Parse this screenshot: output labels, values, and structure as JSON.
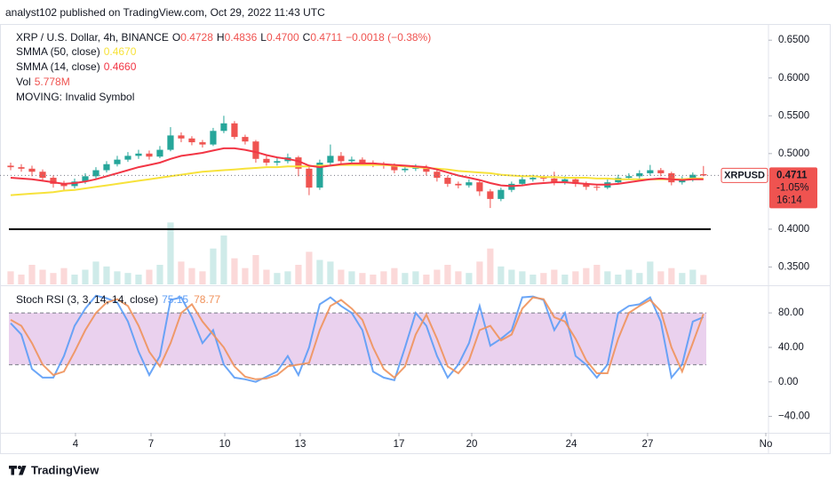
{
  "chart_data": {
    "type": "candlestick",
    "publisher": "analyst102 published on TradingView.com, Oct 29, 2022 11:43 UTC",
    "legend": {
      "symbol": "XRP / U.S. Dollar, 4h, BINANCE",
      "ohlc": [
        {
          "key": "O",
          "value": "0.4728"
        },
        {
          "key": "H",
          "value": "0.4836"
        },
        {
          "key": "L",
          "value": "0.4700"
        },
        {
          "key": "C",
          "value": "0.4711"
        }
      ],
      "change": "−0.0018 (−0.38%)",
      "vol": "Vol",
      "vol_value": "5.778M",
      "moving": "MOVING: Invalid Symbol"
    },
    "up_color": "#26a69a",
    "down_color": "#ef5350",
    "candles": {
      "open": [
        0.484,
        0.482,
        0.48,
        0.476,
        0.468,
        0.46,
        0.457,
        0.463,
        0.47,
        0.478,
        0.486,
        0.492,
        0.497,
        0.5,
        0.496,
        0.505,
        0.524,
        0.52,
        0.515,
        0.512,
        0.53,
        0.54,
        0.522,
        0.516,
        0.493,
        0.488,
        0.49,
        0.495,
        0.48,
        0.455,
        0.488,
        0.497,
        0.49,
        0.492,
        0.488,
        0.486,
        0.484,
        0.478,
        0.48,
        0.482,
        0.476,
        0.468,
        0.46,
        0.458,
        0.462,
        0.45,
        0.44,
        0.452,
        0.46,
        0.466,
        0.468,
        0.467,
        0.462,
        0.466,
        0.46,
        0.456,
        0.455,
        0.462,
        0.468,
        0.47,
        0.474,
        0.478,
        0.474,
        0.462,
        0.466,
        0.4728
      ],
      "high": [
        0.488,
        0.486,
        0.484,
        0.479,
        0.471,
        0.464,
        0.467,
        0.474,
        0.482,
        0.49,
        0.497,
        0.502,
        0.505,
        0.504,
        0.51,
        0.535,
        0.528,
        0.523,
        0.518,
        0.534,
        0.55,
        0.543,
        0.525,
        0.518,
        0.497,
        0.494,
        0.5,
        0.497,
        0.482,
        0.492,
        0.512,
        0.502,
        0.496,
        0.495,
        0.491,
        0.489,
        0.487,
        0.484,
        0.486,
        0.485,
        0.479,
        0.471,
        0.463,
        0.466,
        0.465,
        0.453,
        0.455,
        0.463,
        0.47,
        0.472,
        0.471,
        0.476,
        0.47,
        0.468,
        0.463,
        0.459,
        0.466,
        0.472,
        0.474,
        0.478,
        0.485,
        0.481,
        0.476,
        0.47,
        0.475,
        0.4836
      ],
      "low": [
        0.478,
        0.476,
        0.47,
        0.463,
        0.455,
        0.452,
        0.454,
        0.46,
        0.467,
        0.475,
        0.483,
        0.489,
        0.493,
        0.492,
        0.494,
        0.503,
        0.515,
        0.511,
        0.508,
        0.51,
        0.527,
        0.519,
        0.512,
        0.488,
        0.484,
        0.484,
        0.487,
        0.47,
        0.445,
        0.452,
        0.485,
        0.486,
        0.487,
        0.484,
        0.482,
        0.48,
        0.474,
        0.475,
        0.477,
        0.471,
        0.463,
        0.456,
        0.454,
        0.455,
        0.444,
        0.428,
        0.437,
        0.449,
        0.457,
        0.463,
        0.463,
        0.458,
        0.459,
        0.456,
        0.452,
        0.451,
        0.453,
        0.46,
        0.465,
        0.467,
        0.471,
        0.47,
        0.458,
        0.459,
        0.463,
        0.47
      ],
      "close": [
        0.482,
        0.48,
        0.476,
        0.468,
        0.46,
        0.457,
        0.463,
        0.47,
        0.478,
        0.486,
        0.492,
        0.497,
        0.5,
        0.496,
        0.505,
        0.524,
        0.52,
        0.515,
        0.512,
        0.53,
        0.54,
        0.522,
        0.516,
        0.493,
        0.488,
        0.49,
        0.495,
        0.48,
        0.455,
        0.488,
        0.497,
        0.49,
        0.492,
        0.488,
        0.486,
        0.484,
        0.478,
        0.48,
        0.482,
        0.476,
        0.468,
        0.46,
        0.458,
        0.462,
        0.45,
        0.44,
        0.452,
        0.46,
        0.466,
        0.468,
        0.467,
        0.462,
        0.466,
        0.46,
        0.456,
        0.455,
        0.462,
        0.468,
        0.47,
        0.474,
        0.478,
        0.474,
        0.462,
        0.466,
        0.472,
        0.4711
      ]
    },
    "volume": [
      8,
      6,
      12,
      9,
      7,
      10,
      6,
      9,
      14,
      11,
      8,
      7,
      6,
      9,
      12,
      38,
      14,
      10,
      8,
      22,
      30,
      16,
      10,
      18,
      9,
      7,
      8,
      12,
      20,
      15,
      14,
      9,
      8,
      7,
      6,
      8,
      10,
      7,
      8,
      6,
      9,
      12,
      8,
      7,
      14,
      22,
      11,
      9,
      8,
      6,
      7,
      9,
      6,
      8,
      10,
      12,
      8,
      6,
      9,
      7,
      14,
      8,
      10,
      7,
      9,
      5.778
    ],
    "vlim": [
      0,
      60
    ],
    "series": [
      {
        "name": "SMMA (50, close)",
        "last_label": "0.4670",
        "color": "#f7e23b",
        "values": [
          0.445,
          0.446,
          0.447,
          0.448,
          0.449,
          0.451,
          0.452,
          0.454,
          0.456,
          0.458,
          0.46,
          0.462,
          0.464,
          0.466,
          0.468,
          0.47,
          0.472,
          0.474,
          0.476,
          0.477,
          0.478,
          0.479,
          0.48,
          0.481,
          0.482,
          0.482,
          0.483,
          0.483,
          0.483,
          0.484,
          0.484,
          0.485,
          0.485,
          0.485,
          0.485,
          0.485,
          0.484,
          0.483,
          0.482,
          0.481,
          0.48,
          0.479,
          0.477,
          0.476,
          0.475,
          0.474,
          0.472,
          0.471,
          0.47,
          0.47,
          0.469,
          0.469,
          0.468,
          0.468,
          0.468,
          0.467,
          0.467,
          0.466,
          0.466,
          0.466,
          0.466,
          0.466,
          0.466,
          0.466,
          0.467,
          0.467
        ]
      },
      {
        "name": "SMMA (14, close)",
        "last_label": "0.4660",
        "color": "#f23645",
        "values": [
          0.468,
          0.467,
          0.466,
          0.464,
          0.462,
          0.46,
          0.461,
          0.463,
          0.466,
          0.47,
          0.474,
          0.478,
          0.482,
          0.485,
          0.488,
          0.493,
          0.497,
          0.499,
          0.501,
          0.504,
          0.507,
          0.507,
          0.505,
          0.502,
          0.498,
          0.495,
          0.493,
          0.49,
          0.484,
          0.482,
          0.484,
          0.486,
          0.487,
          0.487,
          0.487,
          0.486,
          0.485,
          0.484,
          0.483,
          0.482,
          0.479,
          0.475,
          0.471,
          0.468,
          0.465,
          0.461,
          0.458,
          0.457,
          0.458,
          0.46,
          0.461,
          0.462,
          0.462,
          0.461,
          0.46,
          0.459,
          0.459,
          0.46,
          0.462,
          0.464,
          0.466,
          0.467,
          0.466,
          0.465,
          0.466,
          0.466
        ]
      }
    ],
    "hline": 0.4,
    "hline_color": "#000000",
    "badge_symbol": "XRPUSD",
    "badge_change": "-1.05%",
    "badge_time": "16:14",
    "ylim": [
      0.327,
      0.662
    ],
    "yticks": [
      {
        "value": 0.65,
        "label": "0.6500"
      },
      {
        "value": 0.6,
        "label": "0.6000"
      },
      {
        "value": 0.55,
        "label": "0.5500"
      },
      {
        "value": 0.5,
        "label": "0.5000"
      },
      {
        "value": 0.4,
        "label": "0.4000"
      },
      {
        "value": 0.35,
        "label": "0.3500"
      }
    ],
    "xlim": [
      -1,
      71.1
    ],
    "xticks": [
      {
        "value": 6.08,
        "label": "4"
      },
      {
        "value": 13.17,
        "label": "7"
      },
      {
        "value": 20.09,
        "label": "10"
      },
      {
        "value": 27.17,
        "label": "13"
      },
      {
        "value": 36.43,
        "label": "17"
      },
      {
        "value": 43.26,
        "label": "20"
      },
      {
        "value": 52.6,
        "label": "24"
      },
      {
        "value": 59.76,
        "label": "27"
      },
      {
        "value": 70.85,
        "label": "No"
      }
    ],
    "stoch": {
      "title": "Stoch RSI (3, 3, 14, 14, close)",
      "band": [
        20,
        80
      ],
      "band_color": "#e1bee7",
      "ylim": [
        -59,
        111
      ],
      "yticks": [
        {
          "value": 80,
          "label": "80.00"
        },
        {
          "value": 40,
          "label": "40.00"
        },
        {
          "value": 0,
          "label": "0.00"
        },
        {
          "value": -40,
          "label": "−40.00"
        }
      ],
      "series": [
        {
          "color": "#5b9cf6",
          "values": [
            68,
            55,
            15,
            5,
            5,
            30,
            65,
            85,
            100,
            97,
            92,
            70,
            35,
            8,
            30,
            95,
            98,
            75,
            45,
            60,
            20,
            5,
            3,
            0,
            6,
            12,
            30,
            8,
            40,
            90,
            98,
            88,
            80,
            60,
            12,
            5,
            2,
            40,
            80,
            65,
            30,
            5,
            20,
            45,
            88,
            42,
            50,
            60,
            98,
            99,
            95,
            60,
            80,
            30,
            20,
            5,
            20,
            80,
            88,
            90,
            98,
            70,
            5,
            20,
            70,
            75.15
          ]
        },
        {
          "color": "#f0925b",
          "values": [
            72,
            65,
            45,
            20,
            8,
            12,
            35,
            60,
            80,
            92,
            96,
            88,
            65,
            35,
            18,
            45,
            80,
            90,
            70,
            55,
            40,
            18,
            6,
            3,
            4,
            8,
            18,
            20,
            22,
            60,
            88,
            95,
            85,
            72,
            40,
            15,
            5,
            18,
            55,
            78,
            50,
            18,
            10,
            25,
            60,
            65,
            48,
            55,
            85,
            98,
            96,
            75,
            70,
            50,
            25,
            10,
            10,
            50,
            80,
            88,
            95,
            82,
            40,
            12,
            45,
            78.77
          ]
        }
      ]
    },
    "footer": "TradingView"
  }
}
